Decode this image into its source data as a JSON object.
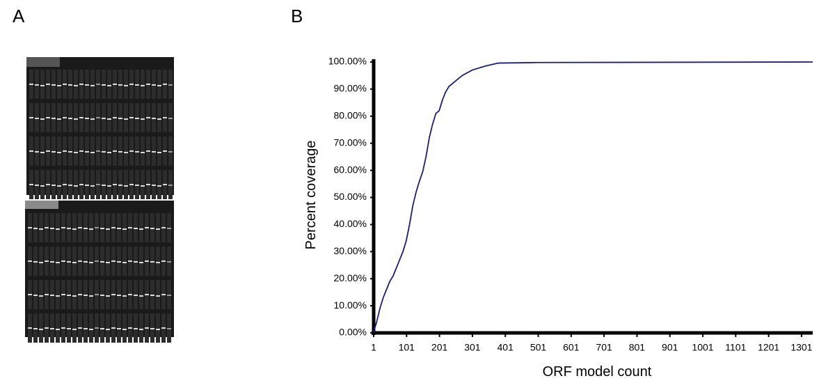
{
  "panel_a": {
    "label": "A"
  },
  "chart_data": {
    "type": "line",
    "panel_label": "B",
    "x_label": "ORF model count",
    "y_label": "Percent coverage",
    "xlim": [
      1,
      1335
    ],
    "ylim": [
      0,
      100
    ],
    "xticks": [
      1,
      101,
      201,
      301,
      401,
      501,
      601,
      701,
      801,
      901,
      1001,
      1101,
      1201,
      1301
    ],
    "yticks": [
      {
        "value": 0,
        "label": "0.00%"
      },
      {
        "value": 10,
        "label": "10.00%"
      },
      {
        "value": 20,
        "label": "20.00%"
      },
      {
        "value": 30,
        "label": "30.00%"
      },
      {
        "value": 40,
        "label": "40.00%"
      },
      {
        "value": 50,
        "label": "50.00%"
      },
      {
        "value": 60,
        "label": "60.00%"
      },
      {
        "value": 70,
        "label": "70.00%"
      },
      {
        "value": 80,
        "label": "80.00%"
      },
      {
        "value": 90,
        "label": "90.00%"
      },
      {
        "value": 100,
        "label": "100.00%"
      }
    ],
    "series": [
      {
        "color": "#1c1c7c",
        "x": [
          1,
          5,
          10,
          20,
          30,
          40,
          50,
          60,
          70,
          80,
          90,
          100,
          110,
          120,
          130,
          140,
          150,
          160,
          170,
          180,
          190,
          200,
          210,
          220,
          230,
          250,
          270,
          300,
          340,
          380,
          500,
          1335
        ],
        "values": [
          0,
          2,
          4,
          9,
          13,
          16,
          19,
          21,
          24,
          27,
          30,
          34,
          40,
          47,
          52,
          56,
          59.5,
          65,
          72,
          77,
          81,
          82,
          86,
          89,
          91,
          93,
          95,
          97,
          98.5,
          99.6,
          99.8,
          100
        ]
      }
    ]
  }
}
